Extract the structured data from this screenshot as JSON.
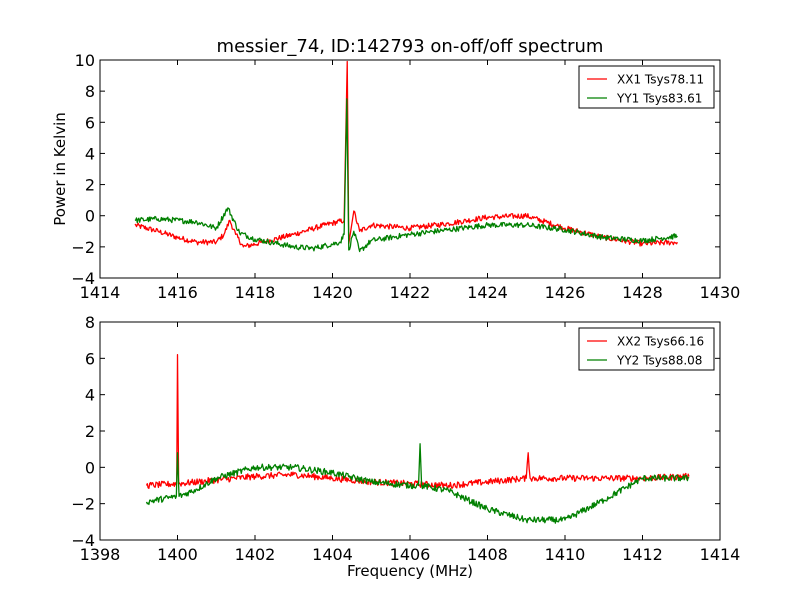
{
  "chart_data": [
    {
      "type": "line",
      "title": "messier_74, ID:142793 on-off/off spectrum",
      "xlabel": "",
      "ylabel": "Power in Kelvin",
      "xlim": [
        1414,
        1430
      ],
      "ylim": [
        -4,
        10
      ],
      "xticks": [
        "1414",
        "1416",
        "1418",
        "1420",
        "1422",
        "1424",
        "1426",
        "1428",
        "1430"
      ],
      "yticks": [
        "−4",
        "−2",
        "0",
        "2",
        "4",
        "6",
        "8",
        "10"
      ],
      "grid": false,
      "legend_position": "top-right",
      "series": [
        {
          "name": "XX1 Tsys78.11",
          "color": "#ff0000",
          "points": [
            [
              1414.9,
              -0.6
            ],
            [
              1415.5,
              -1.0
            ],
            [
              1416.0,
              -1.4
            ],
            [
              1416.5,
              -1.7
            ],
            [
              1417.0,
              -1.7
            ],
            [
              1417.2,
              -1.2
            ],
            [
              1417.35,
              -0.3
            ],
            [
              1417.5,
              -1.2
            ],
            [
              1417.7,
              -2.0
            ],
            [
              1418.2,
              -1.7
            ],
            [
              1419.0,
              -1.2
            ],
            [
              1419.8,
              -0.6
            ],
            [
              1420.3,
              -0.3
            ],
            [
              1420.38,
              9.9
            ],
            [
              1420.42,
              -1.8
            ],
            [
              1420.55,
              0.3
            ],
            [
              1420.7,
              -1.0
            ],
            [
              1421.0,
              -0.6
            ],
            [
              1422.0,
              -0.8
            ],
            [
              1423.0,
              -0.5
            ],
            [
              1424.0,
              -0.1
            ],
            [
              1425.0,
              0.0
            ],
            [
              1426.0,
              -0.8
            ],
            [
              1427.0,
              -1.4
            ],
            [
              1428.0,
              -1.8
            ],
            [
              1428.9,
              -1.7
            ]
          ]
        },
        {
          "name": "YY1 Tsys83.61",
          "color": "#008000",
          "points": [
            [
              1414.9,
              -0.3
            ],
            [
              1415.5,
              -0.2
            ],
            [
              1416.5,
              -0.4
            ],
            [
              1417.0,
              -0.8
            ],
            [
              1417.3,
              0.5
            ],
            [
              1417.6,
              -1.1
            ],
            [
              1418.0,
              -1.5
            ],
            [
              1419.0,
              -2.0
            ],
            [
              1419.5,
              -2.1
            ],
            [
              1420.2,
              -1.7
            ],
            [
              1420.3,
              -1.2
            ],
            [
              1420.37,
              7.5
            ],
            [
              1420.42,
              -2.2
            ],
            [
              1420.55,
              -1.0
            ],
            [
              1420.7,
              -2.3
            ],
            [
              1421.0,
              -1.6
            ],
            [
              1422.0,
              -1.2
            ],
            [
              1423.0,
              -0.9
            ],
            [
              1424.0,
              -0.6
            ],
            [
              1425.0,
              -0.6
            ],
            [
              1426.0,
              -0.9
            ],
            [
              1427.0,
              -1.4
            ],
            [
              1428.0,
              -1.6
            ],
            [
              1428.9,
              -1.3
            ]
          ]
        }
      ]
    },
    {
      "type": "line",
      "title": "",
      "xlabel": "Frequency (MHz)",
      "ylabel": "",
      "xlim": [
        1398,
        1414
      ],
      "ylim": [
        -4,
        8
      ],
      "xticks": [
        "1398",
        "1400",
        "1402",
        "1404",
        "1406",
        "1408",
        "1410",
        "1412",
        "1414"
      ],
      "yticks": [
        "−4",
        "−2",
        "0",
        "2",
        "4",
        "6",
        "8"
      ],
      "grid": false,
      "legend_position": "top-right",
      "series": [
        {
          "name": "XX2 Tsys66.16",
          "color": "#ff0000",
          "points": [
            [
              1399.2,
              -1.0
            ],
            [
              1399.98,
              -0.9
            ],
            [
              1400.0,
              6.2
            ],
            [
              1400.03,
              -0.9
            ],
            [
              1401.0,
              -0.7
            ],
            [
              1402.0,
              -0.5
            ],
            [
              1403.0,
              -0.4
            ],
            [
              1404.0,
              -0.6
            ],
            [
              1405.0,
              -0.8
            ],
            [
              1406.0,
              -0.9
            ],
            [
              1407.0,
              -1.0
            ],
            [
              1408.0,
              -0.8
            ],
            [
              1409.0,
              -0.6
            ],
            [
              1409.05,
              0.8
            ],
            [
              1409.1,
              -0.6
            ],
            [
              1410.0,
              -0.6
            ],
            [
              1411.0,
              -0.6
            ],
            [
              1412.0,
              -0.6
            ],
            [
              1413.2,
              -0.5
            ]
          ]
        },
        {
          "name": "YY2 Tsys88.08",
          "color": "#008000",
          "points": [
            [
              1399.2,
              -1.9
            ],
            [
              1399.97,
              -1.6
            ],
            [
              1400.0,
              0.8
            ],
            [
              1400.04,
              -1.6
            ],
            [
              1400.5,
              -1.2
            ],
            [
              1401.0,
              -0.6
            ],
            [
              1402.0,
              0.0
            ],
            [
              1403.0,
              0.0
            ],
            [
              1404.0,
              -0.3
            ],
            [
              1405.0,
              -0.8
            ],
            [
              1406.0,
              -1.0
            ],
            [
              1406.22,
              -1.0
            ],
            [
              1406.26,
              1.3
            ],
            [
              1406.3,
              -1.0
            ],
            [
              1407.0,
              -1.3
            ],
            [
              1408.0,
              -2.3
            ],
            [
              1409.0,
              -2.9
            ],
            [
              1410.0,
              -2.9
            ],
            [
              1411.0,
              -1.8
            ],
            [
              1412.0,
              -0.6
            ],
            [
              1413.2,
              -0.6
            ]
          ]
        }
      ]
    }
  ]
}
